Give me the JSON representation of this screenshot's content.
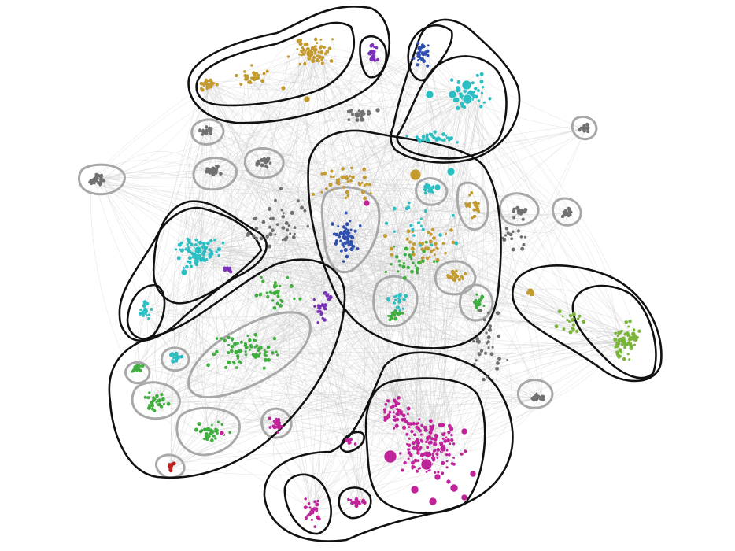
{
  "diagram": {
    "type": "clustered network graph",
    "background": "#ffffff",
    "edge_color": "#c8c8c8",
    "community_colors": {
      "gold": "#c39a2e",
      "blue": "#3050b0",
      "cyan": "#2bbfc4",
      "purple": "#7a30b8",
      "green": "#3fae3f",
      "light_green": "#7ab53a",
      "magenta": "#c0239a",
      "red": "#c02020",
      "gray": "#707070"
    },
    "outline_colors": {
      "major": "#111111",
      "minor": "#a8a8a8"
    },
    "major_groups": 10,
    "minor_groups": 32,
    "visible_text": []
  }
}
